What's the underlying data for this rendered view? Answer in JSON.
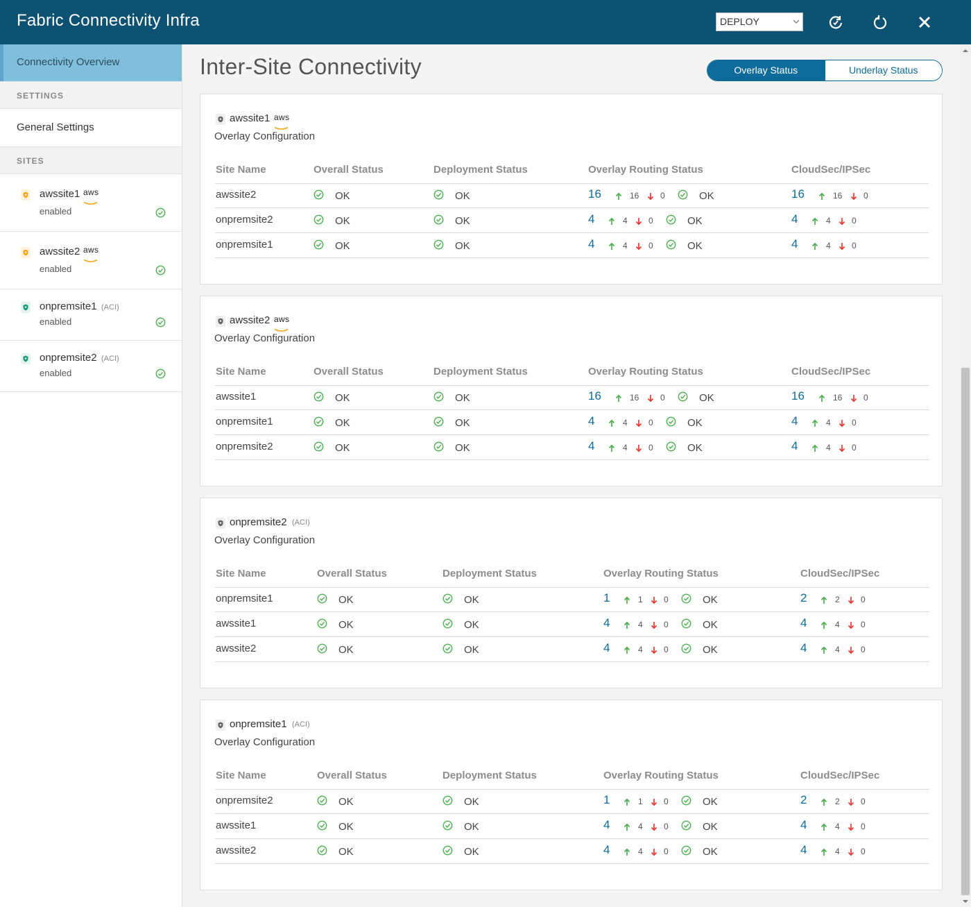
{
  "header": {
    "title": "Fabric Connectivity Infra",
    "deploy_select_value": "DEPLOY"
  },
  "sidebar": {
    "active_item": "Connectivity Overview",
    "settings_heading": "SETTINGS",
    "general_settings": "General Settings",
    "sites_heading": "SITES",
    "sites": [
      {
        "name": "awssite1",
        "tag": "aws",
        "state": "enabled"
      },
      {
        "name": "awssite2",
        "tag": "aws",
        "state": "enabled"
      },
      {
        "name": "onpremsite1",
        "tag": "(ACI)",
        "state": "enabled"
      },
      {
        "name": "onpremsite2",
        "tag": "(ACI)",
        "state": "enabled"
      }
    ]
  },
  "main": {
    "title": "Inter-Site Connectivity",
    "toggle": {
      "overlay": "Overlay Status",
      "underlay": "Underlay Status"
    },
    "subtitle": "Overlay Configuration",
    "columns": [
      "Site Name",
      "Overall Status",
      "Deployment Status",
      "Overlay Routing Status",
      "CloudSec/IPSec"
    ],
    "cards": [
      {
        "site": "awssite1",
        "tag": "aws",
        "rows": [
          {
            "site": "awssite2",
            "overall": "OK",
            "deploy": "OK",
            "routing_total": "16",
            "routing_up": "16",
            "routing_down": "0",
            "routing_status": "OK",
            "sec_total": "16",
            "sec_up": "16",
            "sec_down": "0"
          },
          {
            "site": "onpremsite2",
            "overall": "OK",
            "deploy": "OK",
            "routing_total": "4",
            "routing_up": "4",
            "routing_down": "0",
            "routing_status": "OK",
            "sec_total": "4",
            "sec_up": "4",
            "sec_down": "0"
          },
          {
            "site": "onpremsite1",
            "overall": "OK",
            "deploy": "OK",
            "routing_total": "4",
            "routing_up": "4",
            "routing_down": "0",
            "routing_status": "OK",
            "sec_total": "4",
            "sec_up": "4",
            "sec_down": "0"
          }
        ]
      },
      {
        "site": "awssite2",
        "tag": "aws",
        "rows": [
          {
            "site": "awssite1",
            "overall": "OK",
            "deploy": "OK",
            "routing_total": "16",
            "routing_up": "16",
            "routing_down": "0",
            "routing_status": "OK",
            "sec_total": "16",
            "sec_up": "16",
            "sec_down": "0"
          },
          {
            "site": "onpremsite1",
            "overall": "OK",
            "deploy": "OK",
            "routing_total": "4",
            "routing_up": "4",
            "routing_down": "0",
            "routing_status": "OK",
            "sec_total": "4",
            "sec_up": "4",
            "sec_down": "0"
          },
          {
            "site": "onpremsite2",
            "overall": "OK",
            "deploy": "OK",
            "routing_total": "4",
            "routing_up": "4",
            "routing_down": "0",
            "routing_status": "OK",
            "sec_total": "4",
            "sec_up": "4",
            "sec_down": "0"
          }
        ]
      },
      {
        "site": "onpremsite2",
        "tag": "(ACI)",
        "rows": [
          {
            "site": "onpremsite1",
            "overall": "OK",
            "deploy": "OK",
            "routing_total": "1",
            "routing_up": "1",
            "routing_down": "0",
            "routing_status": "OK",
            "sec_total": "2",
            "sec_up": "2",
            "sec_down": "0"
          },
          {
            "site": "awssite1",
            "overall": "OK",
            "deploy": "OK",
            "routing_total": "4",
            "routing_up": "4",
            "routing_down": "0",
            "routing_status": "OK",
            "sec_total": "4",
            "sec_up": "4",
            "sec_down": "0"
          },
          {
            "site": "awssite2",
            "overall": "OK",
            "deploy": "OK",
            "routing_total": "4",
            "routing_up": "4",
            "routing_down": "0",
            "routing_status": "OK",
            "sec_total": "4",
            "sec_up": "4",
            "sec_down": "0"
          }
        ]
      },
      {
        "site": "onpremsite1",
        "tag": "(ACI)",
        "rows": [
          {
            "site": "onpremsite2",
            "overall": "OK",
            "deploy": "OK",
            "routing_total": "1",
            "routing_up": "1",
            "routing_down": "0",
            "routing_status": "OK",
            "sec_total": "2",
            "sec_up": "2",
            "sec_down": "0"
          },
          {
            "site": "awssite1",
            "overall": "OK",
            "deploy": "OK",
            "routing_total": "4",
            "routing_up": "4",
            "routing_down": "0",
            "routing_status": "OK",
            "sec_total": "4",
            "sec_up": "4",
            "sec_down": "0"
          },
          {
            "site": "awssite2",
            "overall": "OK",
            "deploy": "OK",
            "routing_total": "4",
            "routing_up": "4",
            "routing_down": "0",
            "routing_status": "OK",
            "sec_total": "4",
            "sec_up": "4",
            "sec_down": "0"
          }
        ]
      }
    ]
  },
  "colors": {
    "header_bg": "#0d5272",
    "accent": "#0d6a9a",
    "ok_green": "#4caf50",
    "up_green": "#4caf50",
    "down_red": "#e53935",
    "aws_orange": "#f5a623",
    "aci_teal": "#1a9a7a"
  },
  "icons": {
    "deploy_chevron": "chevron-down-icon",
    "refresh": "refresh-icon",
    "reload": "reload-icon",
    "close": "close-icon",
    "site": "shield-icon",
    "ok": "check-circle-icon",
    "up": "arrow-up-icon",
    "down": "arrow-down-icon"
  }
}
